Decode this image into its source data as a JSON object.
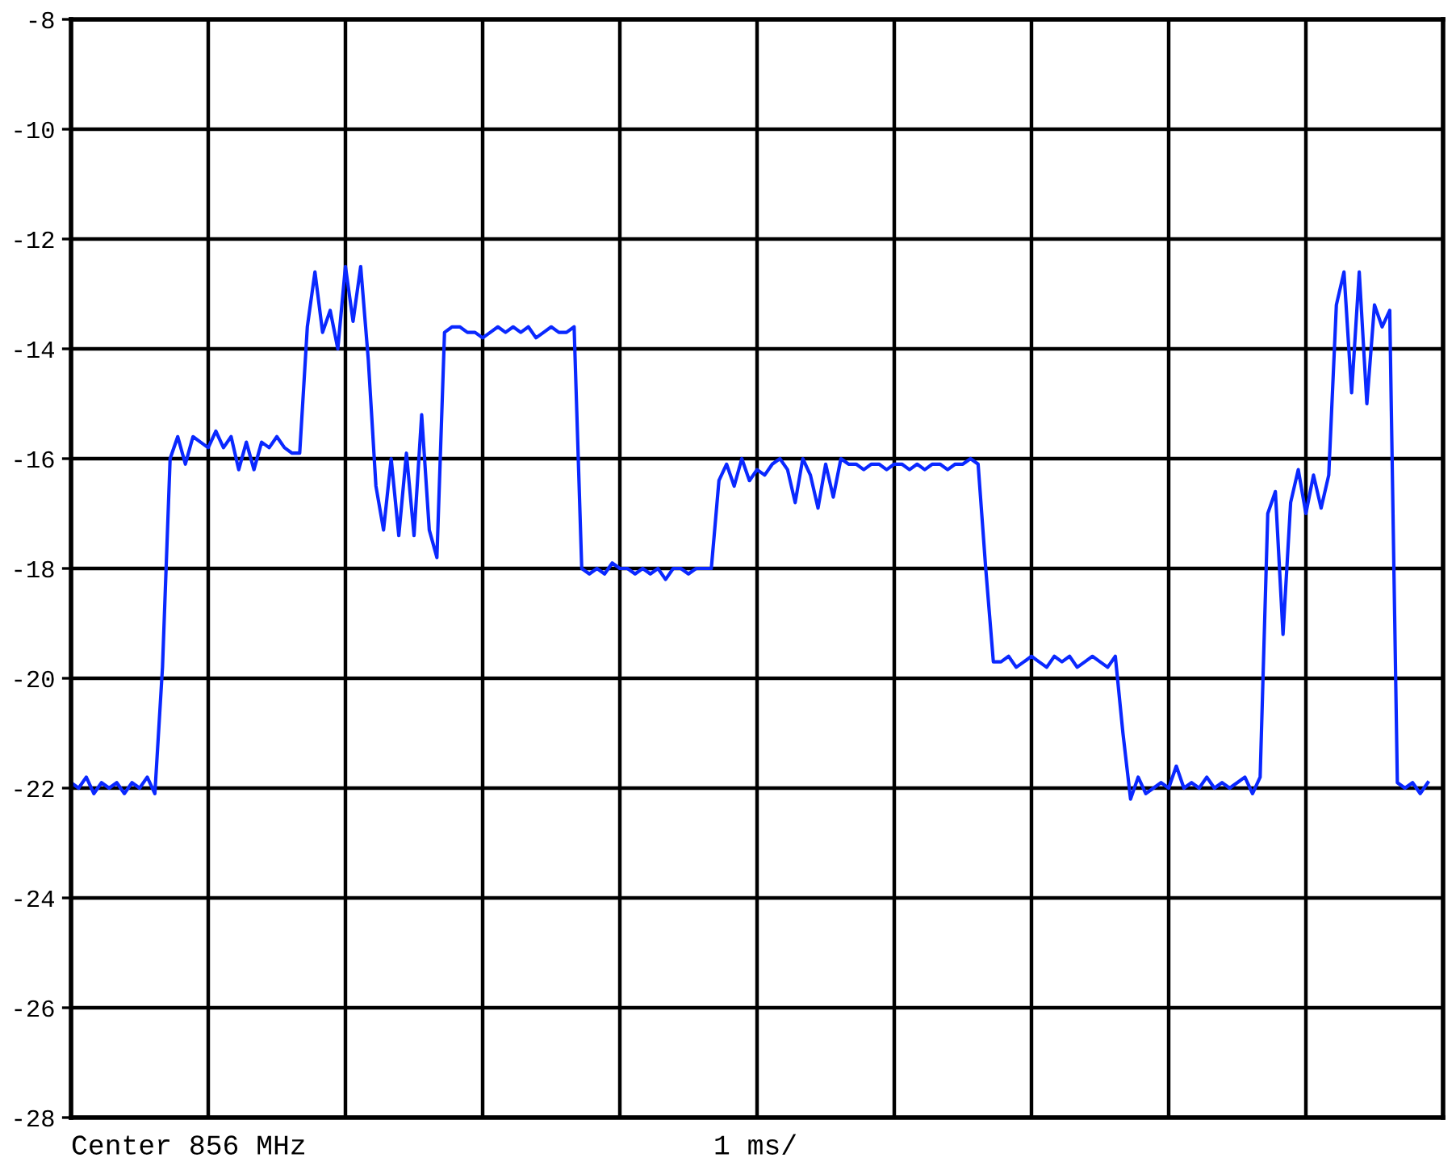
{
  "chart_data": {
    "type": "line",
    "categories": [
      null,
      null,
      null,
      null,
      null,
      null,
      null,
      null,
      null,
      null,
      null,
      null,
      null,
      null,
      null,
      null,
      null,
      null,
      null,
      null,
      null,
      null,
      null,
      null,
      null,
      null,
      null,
      null,
      null,
      null,
      null,
      null,
      null,
      null,
      null,
      null,
      null,
      null,
      null,
      null,
      null,
      null,
      null,
      null,
      null,
      null,
      null,
      null,
      null,
      null,
      null,
      null,
      null,
      null,
      null,
      null,
      null,
      null,
      null,
      null,
      null,
      null,
      null,
      null,
      null,
      null,
      null,
      null,
      null,
      null,
      null,
      null,
      null,
      null,
      null,
      null,
      null,
      null,
      null,
      null,
      null,
      null,
      null,
      null,
      null,
      null,
      null,
      null,
      null,
      null,
      null,
      null,
      null,
      null,
      null,
      null,
      null,
      null,
      null,
      null,
      null,
      null,
      null,
      null,
      null,
      null,
      null,
      null,
      null,
      null,
      null,
      null,
      null,
      null,
      null,
      null,
      null,
      null,
      null,
      null,
      null,
      null,
      null,
      null,
      null,
      null,
      null,
      null,
      null,
      null,
      null,
      null,
      null,
      null,
      null,
      null,
      null,
      null,
      null,
      null,
      null,
      null,
      null,
      null,
      null,
      null,
      null,
      null,
      null,
      null,
      null,
      null,
      null,
      null,
      null,
      null,
      null,
      null,
      null,
      null,
      null,
      null,
      null,
      null,
      null,
      null,
      null,
      null,
      null,
      null,
      null,
      null,
      null,
      null,
      null,
      null,
      null,
      null,
      null
    ],
    "series": [
      {
        "color": "#0a28ff",
        "values": [
          -21.9,
          -22.0,
          -21.8,
          -22.1,
          -21.9,
          -22.0,
          -21.9,
          -22.1,
          -21.9,
          -22.0,
          -21.8,
          -22.1,
          -19.8,
          -16.0,
          -15.6,
          -16.1,
          -15.6,
          -15.7,
          -15.8,
          -15.5,
          -15.8,
          -15.6,
          -16.2,
          -15.7,
          -16.2,
          -15.7,
          -15.8,
          -15.6,
          -15.8,
          -15.9,
          -15.9,
          -13.6,
          -12.6,
          -13.7,
          -13.3,
          -14.0,
          -12.5,
          -13.5,
          -12.5,
          -14.2,
          -16.5,
          -17.3,
          -16.0,
          -17.4,
          -15.9,
          -17.4,
          -15.2,
          -17.3,
          -17.8,
          -13.7,
          -13.6,
          -13.6,
          -13.7,
          -13.7,
          -13.8,
          -13.7,
          -13.6,
          -13.7,
          -13.6,
          -13.7,
          -13.6,
          -13.8,
          -13.7,
          -13.6,
          -13.7,
          -13.7,
          -13.6,
          -18.0,
          -18.1,
          -18.0,
          -18.1,
          -17.9,
          -18.0,
          -18.0,
          -18.1,
          -18.0,
          -18.1,
          -18.0,
          -18.2,
          -18.0,
          -18.0,
          -18.1,
          -18.0,
          -18.0,
          -18.0,
          -16.4,
          -16.1,
          -16.5,
          -16.0,
          -16.4,
          -16.2,
          -16.3,
          -16.1,
          -16.0,
          -16.2,
          -16.8,
          -16.0,
          -16.3,
          -16.9,
          -16.1,
          -16.7,
          -16.0,
          -16.1,
          -16.1,
          -16.2,
          -16.1,
          -16.1,
          -16.2,
          -16.1,
          -16.1,
          -16.2,
          -16.1,
          -16.2,
          -16.1,
          -16.1,
          -16.2,
          -16.1,
          -16.1,
          -16.0,
          -16.1,
          -18.0,
          -19.7,
          -19.7,
          -19.6,
          -19.8,
          -19.7,
          -19.6,
          -19.7,
          -19.8,
          -19.6,
          -19.7,
          -19.6,
          -19.8,
          -19.7,
          -19.6,
          -19.7,
          -19.8,
          -19.6,
          -21.0,
          -22.2,
          -21.8,
          -22.1,
          -22.0,
          -21.9,
          -22.0,
          -21.6,
          -22.0,
          -21.9,
          -22.0,
          -21.8,
          -22.0,
          -21.9,
          -22.0,
          -21.9,
          -21.8,
          -22.1,
          -21.8,
          -17.0,
          -16.6,
          -19.2,
          -16.8,
          -16.2,
          -17.0,
          -16.3,
          -16.9,
          -16.3,
          -13.2,
          -12.6,
          -14.8,
          -12.6,
          -15.0,
          -13.2,
          -13.6,
          -13.3,
          -21.9,
          -22.0,
          -21.9,
          -22.1,
          -21.9
        ]
      }
    ],
    "ylim": [
      -28,
      -8
    ],
    "yticks": [
      -28,
      -26,
      -24,
      -22,
      -20,
      -18,
      -16,
      -14,
      -12,
      -10,
      -8
    ],
    "grid": true,
    "marker": "none",
    "line_style": "solid",
    "annotations": [
      "Center 856 MHz",
      "1 ms/"
    ]
  }
}
